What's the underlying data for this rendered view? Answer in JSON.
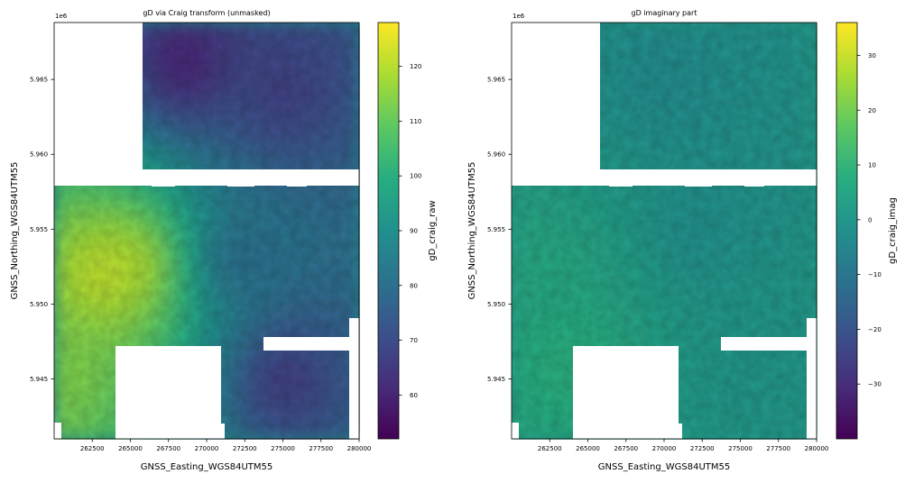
{
  "chart_data": [
    {
      "type": "heatmap",
      "title": "gD via Craig transform (unmasked)",
      "xlabel": "GNSS_Easting_WGS84UTM55",
      "ylabel": "GNSS_Northing_WGS84UTM55",
      "y_offset_label": "1e6",
      "xlim": [
        260000,
        280000
      ],
      "ylim": [
        5.941,
        5.9688
      ],
      "x_ticks": [
        262500,
        265000,
        267500,
        270000,
        272500,
        275000,
        277500,
        280000
      ],
      "x_tick_labels": [
        "262500",
        "265000",
        "267500",
        "270000",
        "272500",
        "275000",
        "277500",
        "280000"
      ],
      "y_ticks": [
        5.945,
        5.95,
        5.955,
        5.96,
        5.965
      ],
      "y_tick_labels": [
        "5.945",
        "5.950",
        "5.955",
        "5.960",
        "5.965"
      ],
      "colorbar": {
        "label": "gD_craig_raw",
        "colormap": "viridis",
        "min": 52,
        "max": 128,
        "ticks": [
          60,
          70,
          80,
          90,
          100,
          110,
          120
        ],
        "tick_labels": [
          "60",
          "70",
          "80",
          "90",
          "100",
          "110",
          "120"
        ]
      },
      "value_samples": [
        {
          "x": 268500,
          "y": 5.966,
          "v": 58
        },
        {
          "x": 275000,
          "y": 5.964,
          "v": 66
        },
        {
          "x": 263200,
          "y": 5.952,
          "v": 124
        },
        {
          "x": 265200,
          "y": 5.9525,
          "v": 122
        },
        {
          "x": 261000,
          "y": 5.945,
          "v": 114
        },
        {
          "x": 275000,
          "y": 5.945,
          "v": 64
        },
        {
          "x": 272000,
          "y": 5.953,
          "v": 78
        }
      ]
    },
    {
      "type": "heatmap",
      "title": "gD imaginary part",
      "xlabel": "GNSS_Easting_WGS84UTM55",
      "ylabel": "GNSS_Northing_WGS84UTM55",
      "y_offset_label": "1e6",
      "xlim": [
        260000,
        280000
      ],
      "ylim": [
        5.941,
        5.9688
      ],
      "x_ticks": [
        262500,
        265000,
        267500,
        270000,
        272500,
        275000,
        277500,
        280000
      ],
      "x_tick_labels": [
        "262500",
        "265000",
        "267500",
        "270000",
        "272500",
        "275000",
        "277500",
        "280000"
      ],
      "y_ticks": [
        5.945,
        5.95,
        5.955,
        5.96,
        5.965
      ],
      "y_tick_labels": [
        "5.945",
        "5.950",
        "5.955",
        "5.960",
        "5.965"
      ],
      "colorbar": {
        "label": "gD_craig_imag",
        "colormap": "viridis",
        "min": -40,
        "max": 36,
        "ticks": [
          -30,
          -20,
          -10,
          0,
          10,
          20,
          30
        ],
        "tick_labels": [
          "−30",
          "−20",
          "−10",
          "0",
          "10",
          "20",
          "30"
        ]
      },
      "value_samples": [
        {
          "x": 270000,
          "y": 5.965,
          "v": -3
        },
        {
          "x": 263000,
          "y": 5.952,
          "v": 6
        },
        {
          "x": 264000,
          "y": 5.946,
          "v": 9
        },
        {
          "x": 275000,
          "y": 5.945,
          "v": 0
        },
        {
          "x": 272000,
          "y": 5.955,
          "v": -2
        }
      ]
    }
  ]
}
